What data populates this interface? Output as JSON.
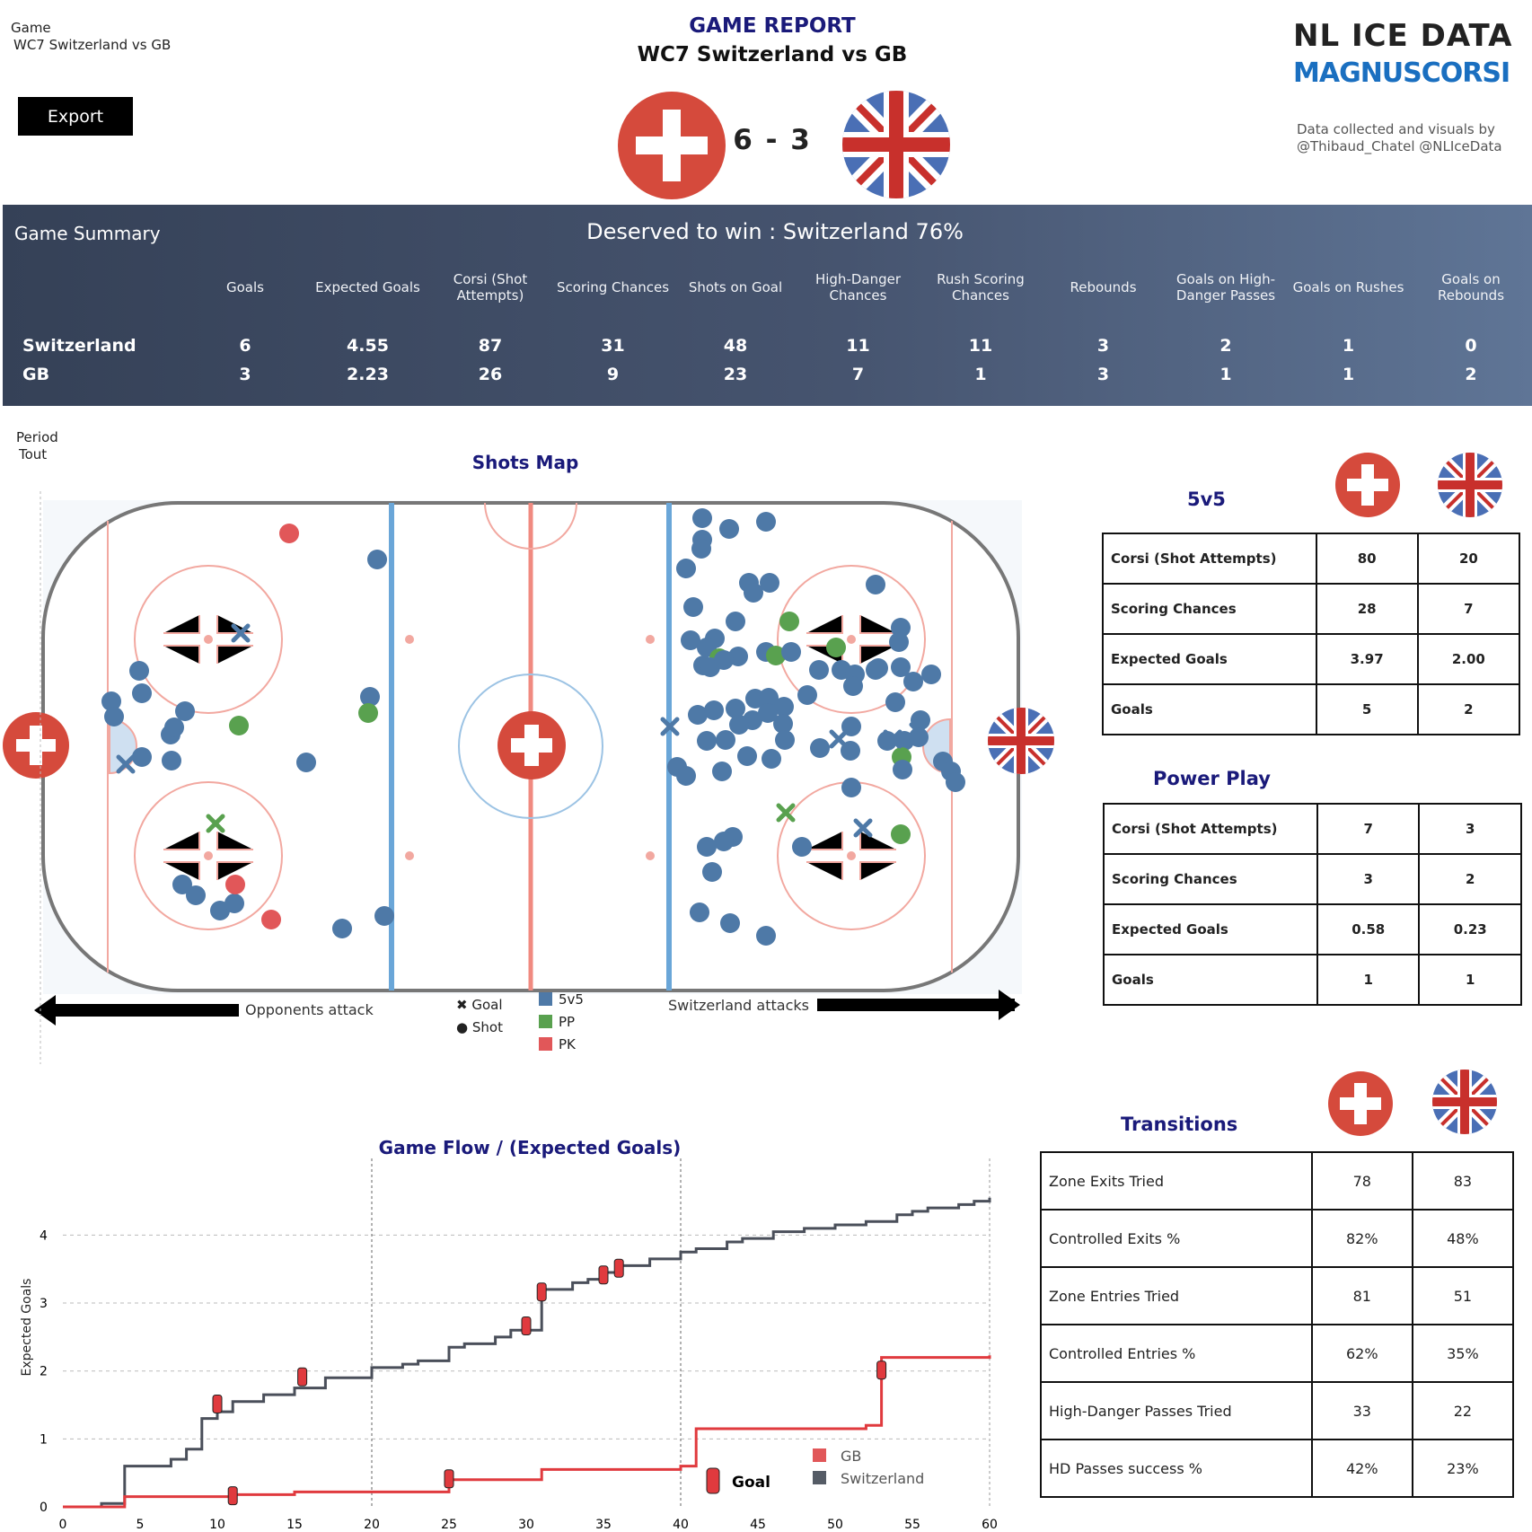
{
  "header": {
    "game_label": "Game",
    "game_value": "WC7 Switzerland vs GB",
    "export_label": "Export",
    "report_title": "GAME REPORT",
    "report_subtitle": "WC7 Switzerland vs GB",
    "score": "6 - 3",
    "brand_line1": "NL ICE DATA",
    "brand_line2": "MAGNUSCORSI",
    "credit_line1": "Data collected and visuals by",
    "credit_line2": "@Thibaud_Chatel @NLIceData"
  },
  "colors": {
    "switzerland": "#d54a3c",
    "gb_blue": "#4a6fb5",
    "gb_red": "#c8302c",
    "title_navy": "#1a1a7a",
    "shot_5v5": "#4e79a7",
    "shot_pp": "#59a14f",
    "shot_pk": "#e15759",
    "band": "#3d4a63"
  },
  "summary": {
    "title": "Game Summary",
    "deserved_label": "Deserved to win :",
    "deserved_value": "Switzerland 76%",
    "columns": [
      "Goals",
      "Expected Goals",
      "Corsi (Shot Attempts)",
      "Scoring Chances",
      "Shots on Goal",
      "High-Danger Chances",
      "Rush Scoring Chances",
      "Rebounds",
      "Goals on High-Danger Passes",
      "Goals on Rushes",
      "Goals on Rebounds"
    ],
    "rows": [
      {
        "team": "Switzerland",
        "values": [
          "6",
          "4.55",
          "87",
          "31",
          "48",
          "11",
          "11",
          "3",
          "2",
          "1",
          "0"
        ]
      },
      {
        "team": "GB",
        "values": [
          "3",
          "2.23",
          "26",
          "9",
          "23",
          "7",
          "1",
          "3",
          "1",
          "1",
          "2"
        ]
      }
    ]
  },
  "shots_map": {
    "period_label": "Period",
    "period_value": "Tout",
    "title": "Shots Map",
    "legend_goal": "Goal",
    "legend_shot": "Shot",
    "legend_5v5": "5v5",
    "legend_pp": "PP",
    "legend_pk": "PK",
    "opponents_attack": "Opponents attack",
    "switzerland_attacks": "Switzerland attacks"
  },
  "fivevfive": {
    "title": "5v5",
    "rows": [
      {
        "label": "Corsi (Shot Attempts)",
        "sui": "80",
        "gb": "20"
      },
      {
        "label": "Scoring Chances",
        "sui": "28",
        "gb": "7"
      },
      {
        "label": "Expected Goals",
        "sui": "3.97",
        "gb": "2.00"
      },
      {
        "label": "Goals",
        "sui": "5",
        "gb": "2"
      }
    ]
  },
  "powerplay": {
    "title": "Power Play",
    "rows": [
      {
        "label": "Corsi (Shot Attempts)",
        "sui": "7",
        "gb": "3"
      },
      {
        "label": "Scoring Chances",
        "sui": "3",
        "gb": "2"
      },
      {
        "label": "Expected Goals",
        "sui": "0.58",
        "gb": "0.23"
      },
      {
        "label": "Goals",
        "sui": "1",
        "gb": "1"
      }
    ]
  },
  "transitions": {
    "title": "Transitions",
    "rows": [
      {
        "label": "Zone Exits Tried",
        "sui": "78",
        "gb": "83"
      },
      {
        "label": "Controlled Exits %",
        "sui": "82%",
        "gb": "48%"
      },
      {
        "label": "Zone Entries Tried",
        "sui": "81",
        "gb": "51"
      },
      {
        "label": "Controlled Entries %",
        "sui": "62%",
        "gb": "35%"
      },
      {
        "label": "High-Danger Passes Tried",
        "sui": "33",
        "gb": "22"
      },
      {
        "label": "HD Passes success %",
        "sui": "42%",
        "gb": "23%"
      }
    ]
  },
  "chart_data": {
    "type": "line",
    "title": "Game Flow  /  (Expected Goals)",
    "xlabel": "",
    "ylabel": "Expected Goals",
    "xlim": [
      0,
      60
    ],
    "ylim": [
      0,
      4.6
    ],
    "xticks": [
      0,
      5,
      10,
      15,
      20,
      25,
      30,
      35,
      40,
      45,
      50,
      55,
      60
    ],
    "yticks": [
      0,
      1,
      2,
      3,
      4
    ],
    "period_lines": [
      20,
      40
    ],
    "legend": [
      "GB",
      "Switzerland"
    ],
    "goal_label": "Goal",
    "series": [
      {
        "name": "Switzerland",
        "color": "#4a4f5a",
        "x": [
          0,
          2.5,
          4,
          7,
          8,
          9,
          10,
          11,
          13,
          15,
          17,
          20,
          22,
          23,
          25,
          26,
          28,
          29,
          31,
          33,
          34,
          35,
          36,
          38,
          40,
          41,
          43,
          44,
          46,
          48,
          50,
          52,
          54,
          55,
          56,
          58,
          59,
          60
        ],
        "y": [
          0,
          0.05,
          0.6,
          0.7,
          0.85,
          1.3,
          1.4,
          1.55,
          1.65,
          1.75,
          1.9,
          2.05,
          2.1,
          2.15,
          2.35,
          2.4,
          2.5,
          2.6,
          3.2,
          3.3,
          3.35,
          3.45,
          3.55,
          3.65,
          3.75,
          3.8,
          3.9,
          3.95,
          4.05,
          4.1,
          4.15,
          4.2,
          4.3,
          4.35,
          4.4,
          4.45,
          4.5,
          4.55
        ]
      },
      {
        "name": "GB",
        "color": "#e03a3e",
        "x": [
          0,
          4,
          11,
          15,
          25,
          31,
          40,
          41,
          52,
          53,
          60
        ],
        "y": [
          0,
          0.15,
          0.18,
          0.22,
          0.4,
          0.55,
          0.6,
          1.15,
          1.2,
          2.2,
          2.23
        ]
      }
    ],
    "goals": [
      {
        "team": "Switzerland",
        "x": 10,
        "y": 1.5
      },
      {
        "team": "Switzerland",
        "x": 15.5,
        "y": 1.9
      },
      {
        "team": "Switzerland",
        "x": 30,
        "y": 2.65
      },
      {
        "team": "Switzerland",
        "x": 31,
        "y": 3.15
      },
      {
        "team": "Switzerland",
        "x": 35,
        "y": 3.4
      },
      {
        "team": "Switzerland",
        "x": 36,
        "y": 3.5
      },
      {
        "team": "GB",
        "x": 11,
        "y": 0.15
      },
      {
        "team": "GB",
        "x": 25,
        "y": 0.4
      },
      {
        "team": "GB",
        "x": 53,
        "y": 2.0
      }
    ]
  }
}
